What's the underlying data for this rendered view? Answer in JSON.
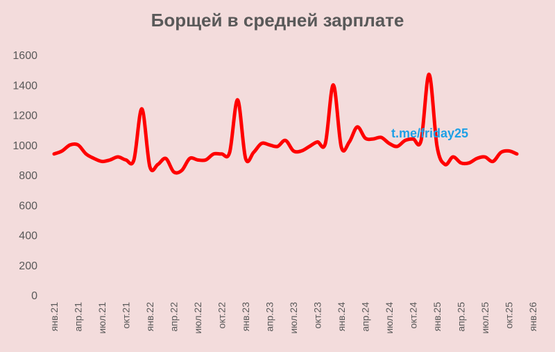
{
  "chart_data": {
    "type": "line",
    "title": "Борщей в средней зарплате",
    "xlabel": "",
    "ylabel": "",
    "ylim": [
      0,
      1600
    ],
    "yticks": [
      0,
      200,
      400,
      600,
      800,
      1000,
      1200,
      1400,
      1600
    ],
    "xtick_labels": [
      "янв.21",
      "апр.21",
      "июл.21",
      "окт.21",
      "янв.22",
      "апр.22",
      "июл.22",
      "окт.22",
      "янв.23",
      "апр.23",
      "июл.23",
      "окт.23",
      "янв.24",
      "апр.24",
      "июл.24",
      "окт.24",
      "янв.25",
      "апр.25",
      "июл.25",
      "окт.25",
      "янв.26"
    ],
    "grid": false,
    "legend": "none",
    "line_color": "#ff0000",
    "watermark": "t.me/friday25",
    "series": [
      {
        "months": [
          "2021-01",
          "2021-02",
          "2021-03",
          "2021-04",
          "2021-05",
          "2021-06",
          "2021-07",
          "2021-08",
          "2021-09",
          "2021-10",
          "2021-11",
          "2021-12",
          "2022-01",
          "2022-02",
          "2022-03",
          "2022-04",
          "2022-05",
          "2022-06",
          "2022-07",
          "2022-08",
          "2022-09",
          "2022-10",
          "2022-11",
          "2022-12",
          "2023-01",
          "2023-02",
          "2023-03",
          "2023-04",
          "2023-05",
          "2023-06",
          "2023-07",
          "2023-08",
          "2023-09",
          "2023-10",
          "2023-11",
          "2023-12",
          "2024-01",
          "2024-02",
          "2024-03",
          "2024-04",
          "2024-05",
          "2024-06",
          "2024-07",
          "2024-08",
          "2024-09",
          "2024-10",
          "2024-11",
          "2024-12",
          "2025-01",
          "2025-02",
          "2025-03",
          "2025-04",
          "2025-05",
          "2025-06",
          "2025-07",
          "2025-08",
          "2025-09",
          "2025-10",
          "2025-11"
        ],
        "values": [
          940,
          960,
          1000,
          1000,
          940,
          910,
          890,
          900,
          920,
          900,
          900,
          1240,
          855,
          870,
          910,
          820,
          830,
          910,
          900,
          900,
          940,
          940,
          950,
          1300,
          910,
          950,
          1010,
          1000,
          990,
          1030,
          960,
          960,
          990,
          1020,
          1010,
          1400,
          985,
          1020,
          1120,
          1045,
          1040,
          1050,
          1010,
          990,
          1030,
          1040,
          1030,
          1470,
          990,
          870,
          920,
          880,
          880,
          910,
          920,
          890,
          950,
          960,
          940
        ]
      }
    ]
  }
}
